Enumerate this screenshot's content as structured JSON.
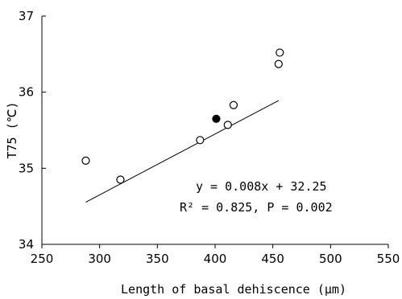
{
  "chart_data": {
    "type": "scatter",
    "title": "",
    "xlabel": "Length of basal dehiscence (μm)",
    "ylabel": "T75 (℃)",
    "xlim": [
      250,
      550
    ],
    "ylim": [
      34,
      37
    ],
    "xticks": [
      250,
      300,
      350,
      400,
      450,
      500,
      550
    ],
    "yticks": [
      34,
      35,
      36,
      37
    ],
    "grid": false,
    "legend": "none",
    "series": [
      {
        "marker": "open-circle",
        "points": [
          {
            "x": 288,
            "y": 35.1
          },
          {
            "x": 318,
            "y": 34.85
          },
          {
            "x": 387,
            "y": 35.37
          },
          {
            "x": 411,
            "y": 35.57
          },
          {
            "x": 416,
            "y": 35.83
          },
          {
            "x": 455,
            "y": 36.37
          },
          {
            "x": 456,
            "y": 36.52
          }
        ]
      },
      {
        "marker": "filled-circle",
        "points": [
          {
            "x": 401,
            "y": 35.65
          }
        ]
      }
    ],
    "trendline": {
      "type": "linear",
      "slope": 0.008,
      "intercept": 32.25,
      "x_range": [
        288,
        455
      ]
    },
    "annotations": {
      "equation": "y = 0.008x + 32.25",
      "stats": "R² = 0.825, P = 0.002"
    },
    "colors": {
      "axis": "#000000",
      "marker_stroke": "#000000",
      "marker_fill_open": "#ffffff",
      "marker_fill_closed": "#000000",
      "trendline": "#000000"
    }
  }
}
